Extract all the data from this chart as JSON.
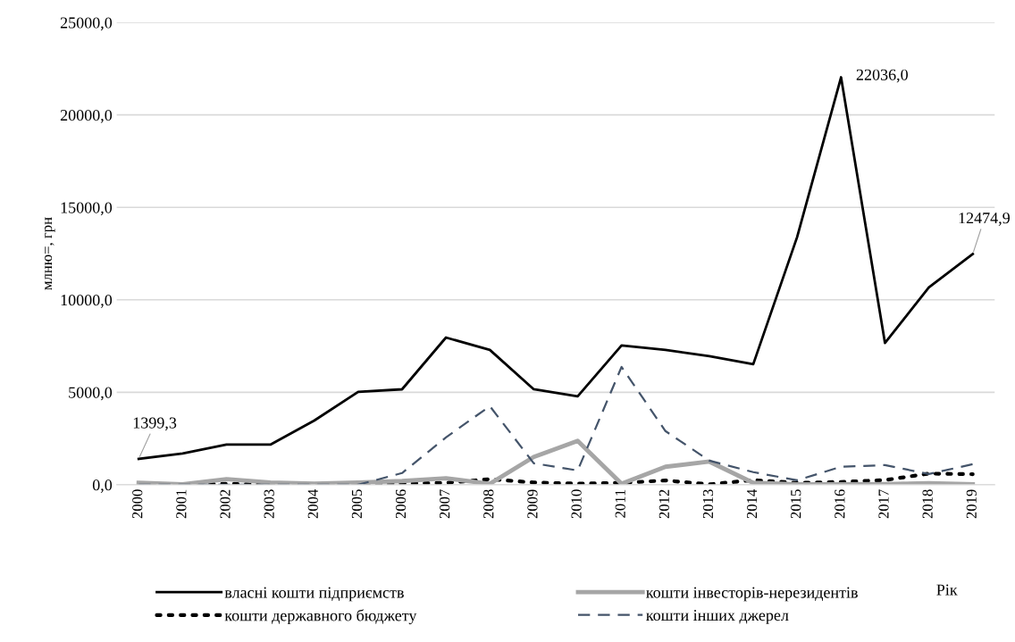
{
  "chart_data": {
    "type": "line",
    "ylabel": "млню=, грн",
    "xlabel": "Рік",
    "categories": [
      "2000",
      "2001",
      "2002",
      "2003",
      "2004",
      "2005",
      "2006",
      "2007",
      "2008",
      "2009",
      "2010",
      "2011",
      "2012",
      "2013",
      "2014",
      "2015",
      "2016",
      "2017",
      "2018",
      "2019"
    ],
    "series": [
      {
        "name": "власні кошти підприємств",
        "color": "#000000",
        "line_style": "solid",
        "values": [
          1399.3,
          1690,
          2170,
          2170,
          3470,
          5020,
          5160,
          7960,
          7290,
          5160,
          4780,
          7530,
          7290,
          6950,
          6520,
          13400,
          22036.0,
          7670,
          10670,
          12474.9
        ],
        "value_labels": [
          "1399,3",
          null,
          null,
          null,
          null,
          null,
          null,
          null,
          null,
          null,
          null,
          null,
          null,
          null,
          null,
          null,
          "22036,0",
          null,
          null,
          "12474,9"
        ]
      },
      {
        "name": "кошти державного бюджету",
        "color": "#000000",
        "line_style": "dotted",
        "values": [
          0,
          0,
          50,
          20,
          30,
          30,
          70,
          100,
          300,
          120,
          60,
          100,
          230,
          20,
          250,
          100,
          150,
          250,
          600,
          570
        ]
      },
      {
        "name": "кошти інвесторів-нерезидентів",
        "color": "#a6a6a6",
        "line_style": "solid",
        "values": [
          100,
          20,
          300,
          120,
          60,
          120,
          200,
          350,
          50,
          1500,
          2370,
          50,
          970,
          1250,
          100,
          20,
          20,
          30,
          80,
          20
        ]
      },
      {
        "name": "кошти інших джерел",
        "color": "#44546a",
        "line_style": "dashed",
        "values": [
          0,
          0,
          0,
          0,
          0,
          0,
          630,
          2560,
          4250,
          1160,
          770,
          6370,
          2900,
          1300,
          680,
          240,
          970,
          1060,
          580,
          1110
        ]
      }
    ],
    "ylim": [
      0,
      25000
    ],
    "yticks": [
      {
        "value": 0,
        "label": "0,0"
      },
      {
        "value": 5000,
        "label": "5000,0"
      },
      {
        "value": 10000,
        "label": "10000,0"
      },
      {
        "value": 15000,
        "label": "15000,0"
      },
      {
        "value": 20000,
        "label": "20000,0"
      },
      {
        "value": 25000,
        "label": "25000,0"
      }
    ],
    "grid": "y",
    "legend": "bottom"
  }
}
